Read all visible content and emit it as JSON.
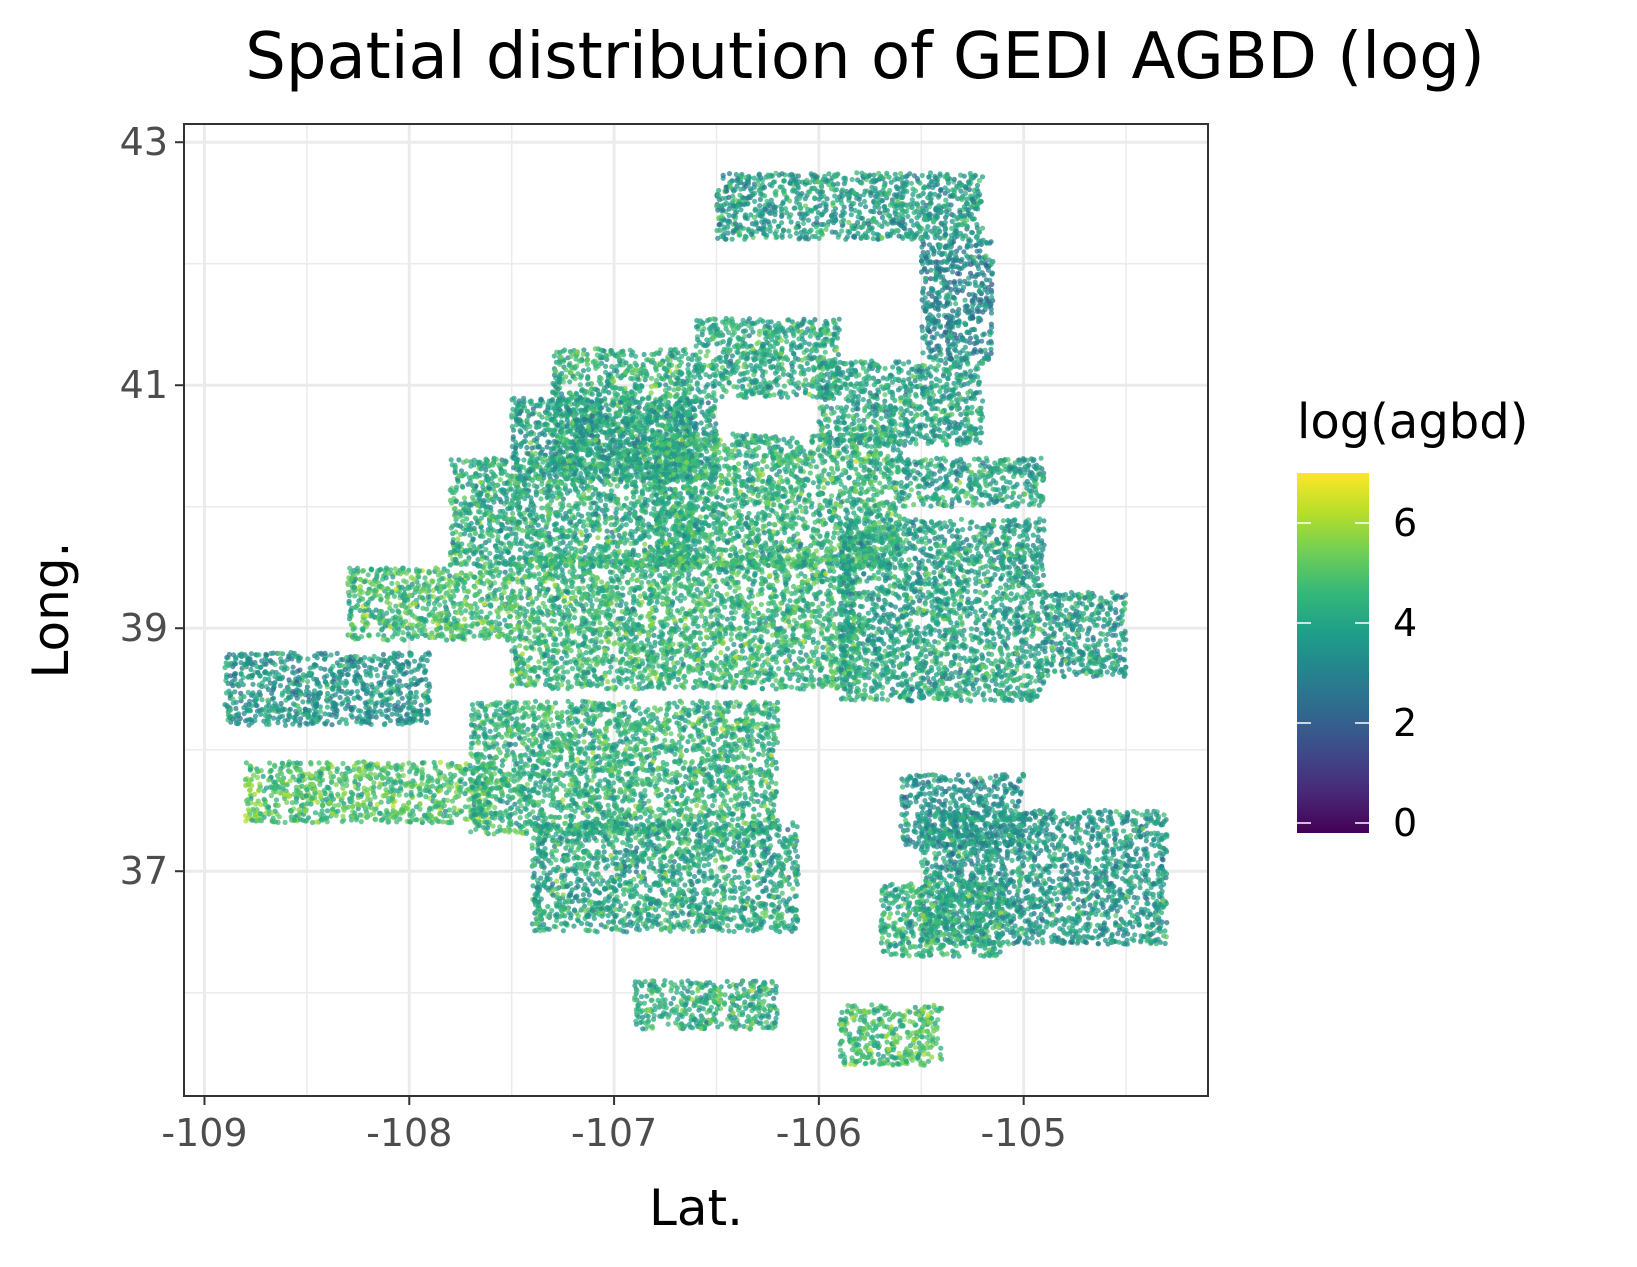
{
  "chart_data": {
    "type": "scatter",
    "title": "Spatial distribution of GEDI AGBD (log)",
    "xlabel": "Lat.",
    "ylabel": "Long.",
    "xlim": [
      -109.1,
      -104.1
    ],
    "ylim": [
      35.15,
      43.15
    ],
    "x_ticks": [
      -109,
      -108,
      -107,
      -106,
      -105
    ],
    "x_tick_labels": [
      "-109",
      "-108",
      "-107",
      "-106",
      "-105"
    ],
    "y_ticks": [
      37,
      39,
      41,
      43
    ],
    "y_tick_labels": [
      "37",
      "39",
      "41",
      "43"
    ],
    "grid": true,
    "color_variable": "log(agbd)",
    "colormap": "viridis",
    "color_range": [
      -0.2,
      7.0
    ],
    "legend": {
      "title": "log(agbd)",
      "position": "right",
      "ticks": [
        0,
        2,
        4,
        6
      ],
      "tick_labels": [
        "0",
        "2",
        "4",
        "6"
      ]
    },
    "regions": [
      {
        "lon": [
          -106.5,
          -105.2
        ],
        "lat": [
          42.2,
          42.75
        ],
        "mean": 3.8
      },
      {
        "lon": [
          -105.5,
          -105.15
        ],
        "lat": [
          41.2,
          42.2
        ],
        "mean": 3.2
      },
      {
        "lon": [
          -106.6,
          -105.9
        ],
        "lat": [
          40.9,
          41.55
        ],
        "mean": 4.2
      },
      {
        "lon": [
          -107.3,
          -106.6
        ],
        "lat": [
          40.4,
          41.3
        ],
        "mean": 4.3
      },
      {
        "lon": [
          -107.5,
          -106.5
        ],
        "lat": [
          40.2,
          40.9
        ],
        "mean": 3.9
      },
      {
        "lon": [
          -106.0,
          -105.2
        ],
        "lat": [
          40.5,
          41.2
        ],
        "mean": 4.0
      },
      {
        "lon": [
          -107.8,
          -106.6
        ],
        "lat": [
          39.5,
          40.4
        ],
        "mean": 4.2
      },
      {
        "lon": [
          -106.8,
          -105.6
        ],
        "lat": [
          39.5,
          40.6
        ],
        "mean": 4.4
      },
      {
        "lon": [
          -105.6,
          -104.9
        ],
        "lat": [
          40.0,
          40.4
        ],
        "mean": 4.0
      },
      {
        "lon": [
          -108.3,
          -107.5
        ],
        "lat": [
          38.9,
          39.5
        ],
        "mean": 4.7
      },
      {
        "lon": [
          -107.5,
          -105.8
        ],
        "lat": [
          38.5,
          39.6
        ],
        "mean": 4.5
      },
      {
        "lon": [
          -105.9,
          -104.9
        ],
        "lat": [
          38.4,
          39.9
        ],
        "mean": 4.0
      },
      {
        "lon": [
          -104.9,
          -104.5
        ],
        "lat": [
          38.6,
          39.3
        ],
        "mean": 3.8
      },
      {
        "lon": [
          -108.9,
          -107.9
        ],
        "lat": [
          38.2,
          38.8
        ],
        "mean": 3.6
      },
      {
        "lon": [
          -108.8,
          -107.6
        ],
        "lat": [
          37.4,
          37.9
        ],
        "mean": 4.9
      },
      {
        "lon": [
          -107.7,
          -106.2
        ],
        "lat": [
          37.3,
          38.4
        ],
        "mean": 4.4
      },
      {
        "lon": [
          -107.4,
          -106.1
        ],
        "lat": [
          36.5,
          37.4
        ],
        "mean": 4.1
      },
      {
        "lon": [
          -105.6,
          -105.0
        ],
        "lat": [
          37.2,
          37.8
        ],
        "mean": 3.5
      },
      {
        "lon": [
          -105.5,
          -104.3
        ],
        "lat": [
          36.4,
          37.5
        ],
        "mean": 3.7
      },
      {
        "lon": [
          -105.7,
          -105.1
        ],
        "lat": [
          36.3,
          36.9
        ],
        "mean": 4.3
      },
      {
        "lon": [
          -106.9,
          -106.2
        ],
        "lat": [
          35.7,
          36.1
        ],
        "mean": 4.3
      },
      {
        "lon": [
          -105.9,
          -105.4
        ],
        "lat": [
          35.4,
          35.9
        ],
        "mean": 4.8
      }
    ]
  }
}
